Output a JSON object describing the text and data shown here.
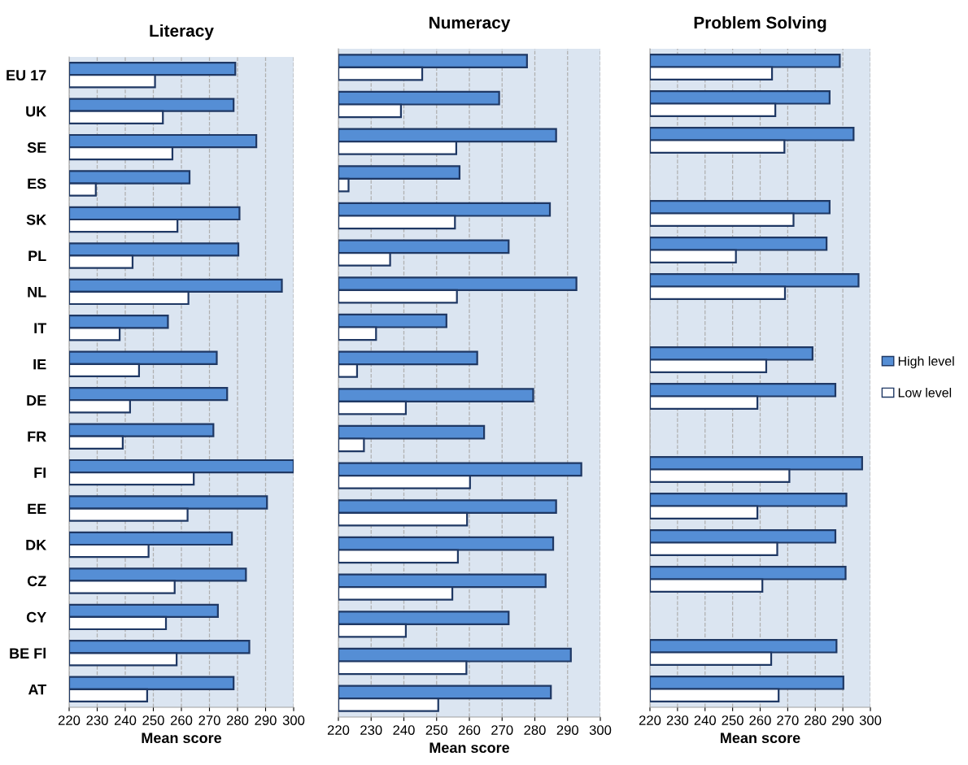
{
  "chart_data": [
    {
      "type": "bar",
      "orientation": "horizontal",
      "title": "Literacy",
      "xlabel": "Mean score",
      "categories": [
        "EU 17",
        "UK",
        "SE",
        "ES",
        "SK",
        "PL",
        "NL",
        "IT",
        "IE",
        "DE",
        "FR",
        "FI",
        "EE",
        "DK",
        "CZ",
        "CY",
        "BE Fl",
        "AT"
      ],
      "xlim": [
        220,
        300
      ],
      "xticks": [
        220,
        230,
        240,
        250,
        260,
        270,
        280,
        290,
        300
      ],
      "grid": "x",
      "series": [
        {
          "color": "#558ed5",
          "values": [
            279.2,
            278.6,
            286.7,
            262.9,
            280.7,
            280.3,
            295.8,
            255.2,
            272.6,
            276.3,
            271.4,
            300,
            290.5,
            278.0,
            283.0,
            273.0,
            284.2,
            278.6
          ]
        },
        {
          "color": "#ffffff",
          "values": [
            250.6,
            253.4,
            256.8,
            229.5,
            258.6,
            242.6,
            262.5,
            238.0,
            244.9,
            241.7,
            239.1,
            264.4,
            262.2,
            248.3,
            257.6,
            254.5,
            258.3,
            247.8
          ]
        }
      ]
    },
    {
      "type": "bar",
      "orientation": "horizontal",
      "title": "Numeracy",
      "xlabel": "Mean score",
      "categories": [
        null,
        null,
        null,
        null,
        null,
        null,
        null,
        null,
        null,
        null,
        null,
        null,
        null,
        null,
        null,
        null,
        null,
        null
      ],
      "xlim": [
        220,
        300
      ],
      "xticks": [
        220,
        230,
        240,
        250,
        260,
        270,
        280,
        290,
        300
      ],
      "grid": "x",
      "tick_labels": "x",
      "series": [
        {
          "color": "#558ed5",
          "values": [
            277.6,
            269.1,
            286.5,
            257.0,
            284.6,
            272.0,
            292.7,
            253.0,
            262.4,
            279.5,
            264.5,
            294.2,
            286.5,
            285.6,
            283.3,
            272.0,
            291.0,
            284.9
          ]
        },
        {
          "color": "#ffffff",
          "values": [
            245.6,
            239.1,
            256.0,
            223.1,
            255.6,
            235.8,
            256.2,
            231.5,
            225.7,
            240.6,
            227.8,
            260.2,
            259.3,
            256.5,
            254.8,
            240.6,
            259.1,
            250.5
          ]
        }
      ]
    },
    {
      "type": "bar",
      "orientation": "horizontal",
      "title": "Problem Solving",
      "xlabel": "Mean score",
      "categories": [
        null,
        null,
        null,
        null,
        null,
        null,
        null,
        null,
        null,
        null,
        null,
        null,
        null,
        null,
        null,
        null,
        null,
        null
      ],
      "xlim": [
        220,
        300
      ],
      "xticks": [
        220,
        230,
        240,
        250,
        260,
        270,
        280,
        290,
        300
      ],
      "grid": "x",
      "tick_labels": "x",
      "legend": "right",
      "series": [
        {
          "name": "High level",
          "color": "#558ed5",
          "values": [
            288.9,
            285.2,
            293.9,
            null,
            285.2,
            284.1,
            295.7,
            null,
            279.0,
            287.3,
            null,
            297.0,
            291.3,
            287.3,
            291.0,
            null,
            287.7,
            290.2
          ]
        },
        {
          "name": "Low level",
          "color": "#ffffff",
          "values": [
            264.3,
            265.5,
            268.8,
            null,
            272.1,
            251.2,
            269.0,
            null,
            262.2,
            259.0,
            null,
            270.6,
            259.0,
            266.2,
            260.8,
            null,
            264.0,
            266.7
          ]
        }
      ]
    }
  ]
}
